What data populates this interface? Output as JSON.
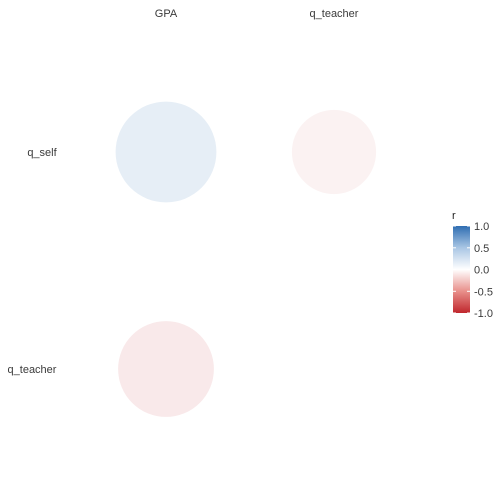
{
  "chart_data": {
    "type": "correlation-bubble",
    "columns": [
      "GPA",
      "q_teacher"
    ],
    "rows": [
      "q_self",
      "q_teacher"
    ],
    "cells": [
      {
        "row": "q_self",
        "col": "GPA",
        "r": 0.12
      },
      {
        "row": "q_self",
        "col": "q_teacher",
        "r": -0.06
      },
      {
        "row": "q_teacher",
        "col": "GPA",
        "r": -0.1
      }
    ],
    "legend": {
      "title": "r",
      "ticks": [
        "1.0",
        "0.5",
        "0.0",
        "-0.5",
        "-1.0"
      ],
      "tick_values": [
        1.0,
        0.5,
        0.0,
        -0.5,
        -1.0
      ],
      "range": [
        -1,
        1
      ],
      "colors": {
        "high": "#2f6eb2",
        "mid": "#ffffff",
        "low": "#c0272d"
      },
      "placement": "right"
    }
  }
}
